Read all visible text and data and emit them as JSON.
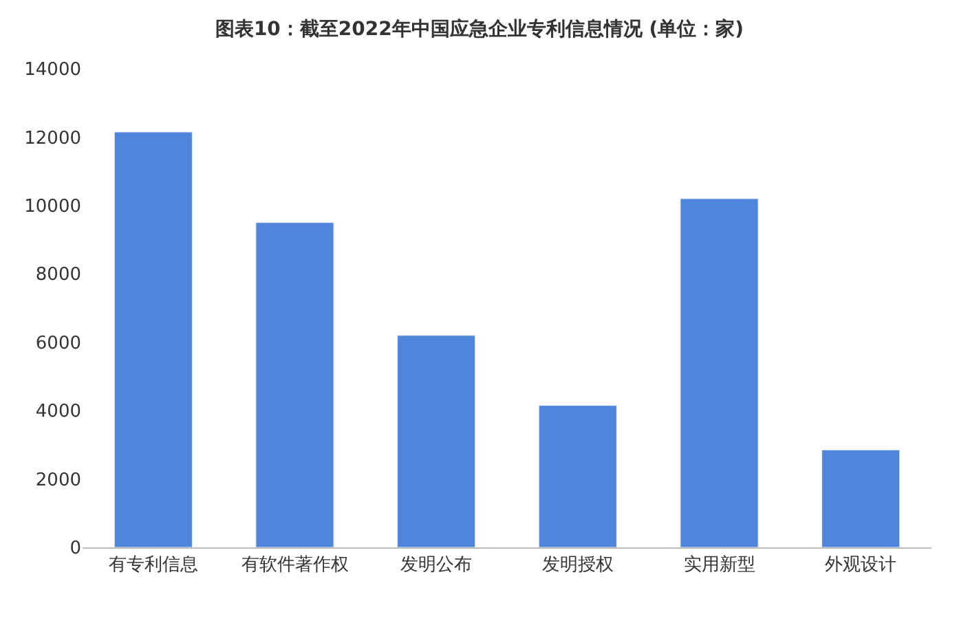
{
  "chart_data": {
    "type": "bar",
    "title": "图表10：截至2022年中国应急企业专利信息情况 (单位：家)",
    "categories": [
      "有专利信息",
      "有软件著作权",
      "发明公布",
      "发明授权",
      "实用新型",
      "外观设计"
    ],
    "values": [
      12150,
      9500,
      6200,
      4150,
      10200,
      2850
    ],
    "color": "#4f86dc",
    "ylim": [
      0,
      14000
    ],
    "yticks": [
      0,
      2000,
      4000,
      6000,
      8000,
      10000,
      12000,
      14000
    ],
    "grid": false
  }
}
